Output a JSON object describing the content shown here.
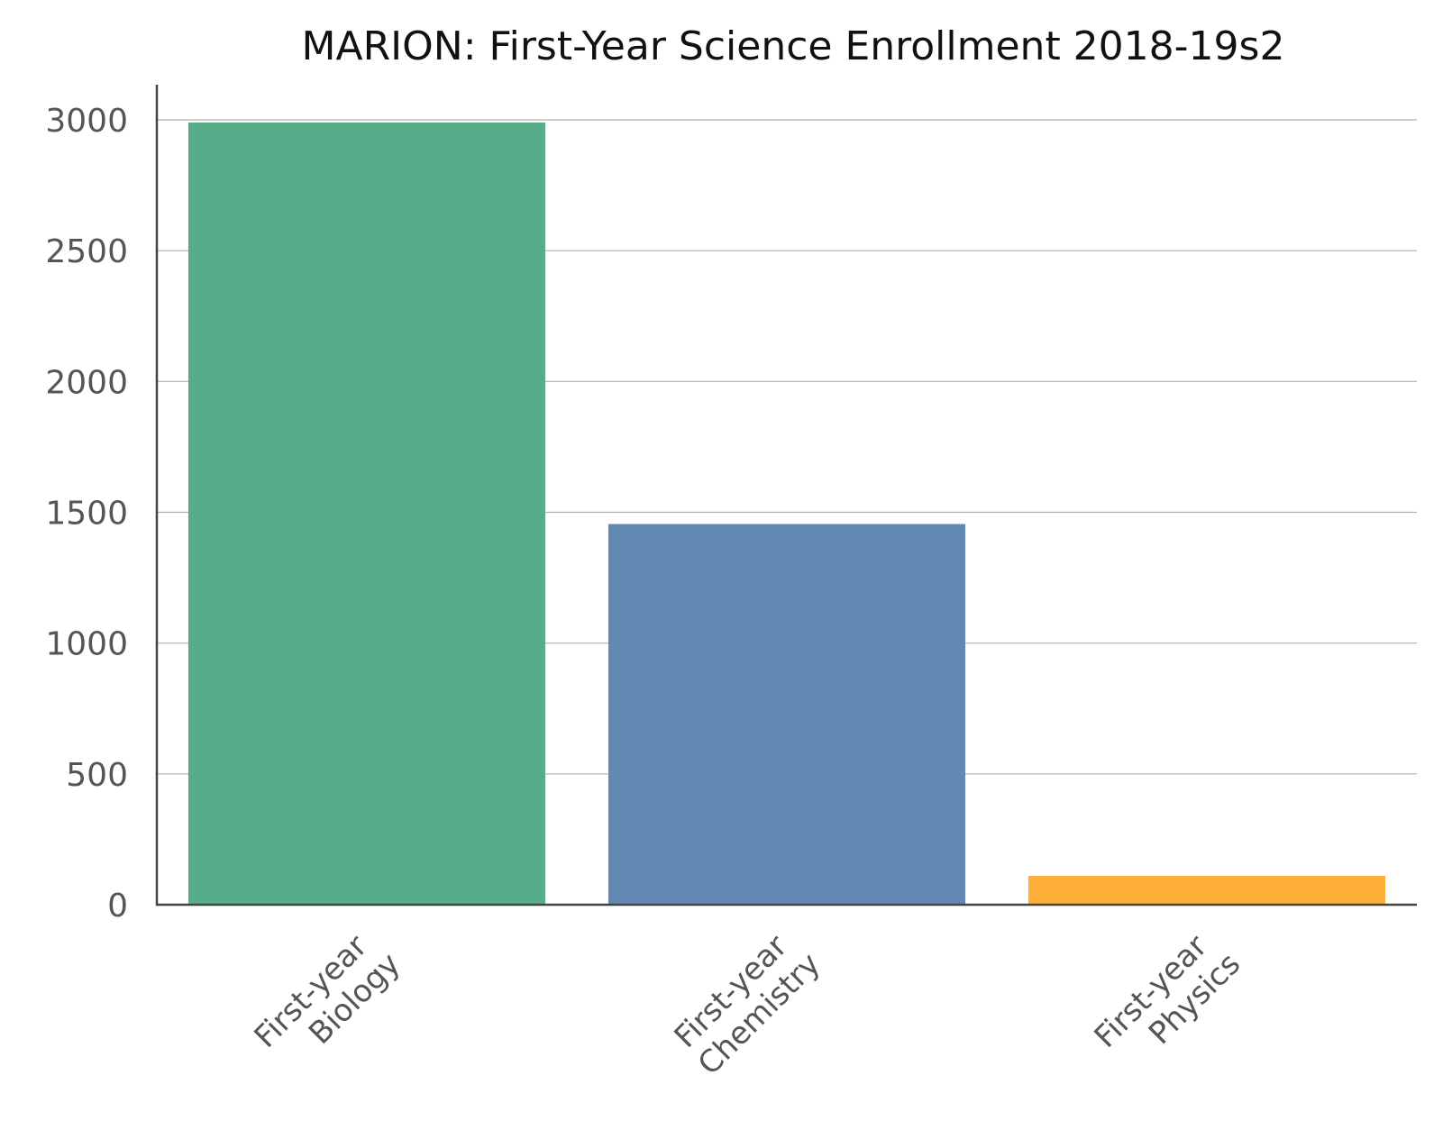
{
  "chart_data": {
    "type": "bar",
    "title": "MARION: First-Year Science Enrollment 2018-19s2",
    "xlabel": "",
    "ylabel": "",
    "categories": [
      "First-year Biology",
      "First-year Chemistry",
      "First-year Physics"
    ],
    "category_label_lines": [
      [
        "First-year",
        "Biology"
      ],
      [
        "First-year",
        "Chemistry"
      ],
      [
        "First-year",
        "Physics"
      ]
    ],
    "values": [
      2990,
      1455,
      110
    ],
    "colors": [
      "#56ad8a",
      "#6388b2",
      "#fcae36"
    ],
    "ylim": [
      0,
      3150
    ],
    "yticks": [
      0,
      500,
      1000,
      1500,
      2000,
      2500,
      3000
    ],
    "grid": true,
    "legend": "none"
  }
}
